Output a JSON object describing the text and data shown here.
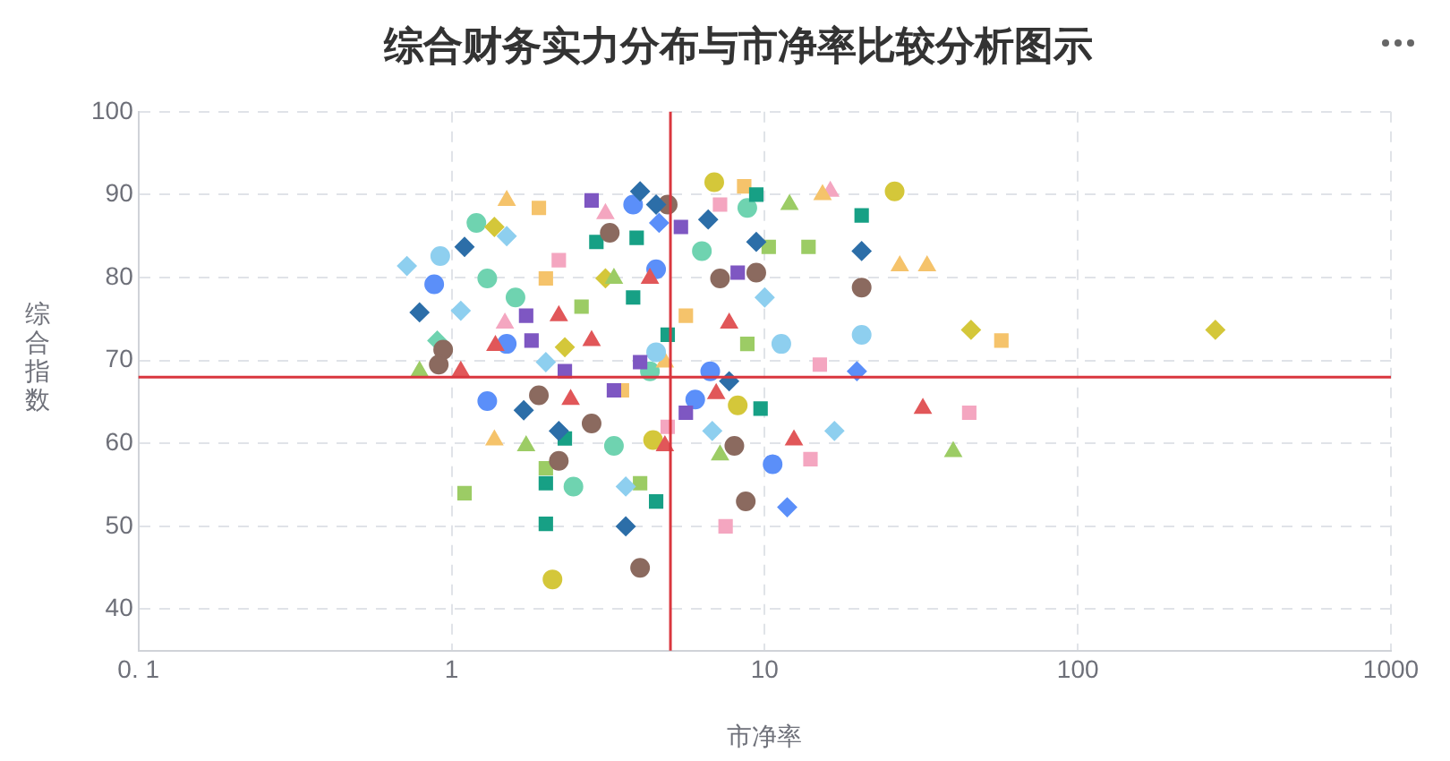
{
  "chart_data": {
    "type": "scatter",
    "title": "综合财务实力分布与市净率比较分析图示",
    "xlabel": "市净率",
    "ylabel": "综合指数",
    "log": "x",
    "xlim": [
      0.1,
      1000
    ],
    "xticks": [
      {
        "value": 0.1,
        "label": "0. 1"
      },
      1,
      10,
      100,
      1000
    ],
    "ylim": [
      35,
      100
    ],
    "yticks": [
      40,
      50,
      60,
      70,
      80,
      90,
      100
    ],
    "grid": true,
    "legend": false,
    "ref_lines": [
      {
        "axis": "x",
        "value": 5,
        "color": "#d9363e"
      },
      {
        "axis": "y",
        "value": 68,
        "color": "#d9363e"
      }
    ],
    "series": [
      {
        "color": "#2c6ea8",
        "marker": "diamond",
        "x": [
          1.1,
          0.79,
          1.7,
          3.6,
          4.5,
          6.6,
          20.4,
          7.7,
          2.2,
          9.4,
          4
        ],
        "values": [
          83.7,
          75.8,
          64,
          50,
          88.8,
          87,
          83.2,
          67.5,
          61.5,
          84.3,
          90.4
        ]
      },
      {
        "color": "#8b6a5f",
        "marker": "circle",
        "x": [
          0.94,
          0.91,
          1.9,
          4,
          8.7,
          8,
          20.4,
          9.4,
          2.2,
          4.9,
          3.2,
          2.8,
          7.2
        ],
        "values": [
          71.3,
          69.5,
          65.8,
          45,
          53,
          59.7,
          78.8,
          80.6,
          57.9,
          88.8,
          85.4,
          62.4,
          79.9
        ]
      },
      {
        "color": "#17a085",
        "marker": "square",
        "x": [
          9.4,
          20.4,
          2,
          2,
          4.5,
          2.9,
          4.9,
          2.3,
          9.7,
          3.8,
          3.9
        ],
        "values": [
          90,
          87.5,
          50.3,
          55.2,
          53,
          84.3,
          73.1,
          60.6,
          64.2,
          77.6,
          84.8
        ]
      },
      {
        "color": "#e15759",
        "marker": "triangle",
        "x": [
          1.38,
          1.07,
          12.4,
          32,
          7,
          2.8,
          4.8,
          7.7,
          4.3,
          2.2,
          2.4
        ],
        "values": [
          71.8,
          68.7,
          60.4,
          64.2,
          66,
          72.4,
          59.7,
          74.5,
          79.9,
          75.4,
          65.3
        ]
      },
      {
        "color": "#7e57c2",
        "marker": "square",
        "x": [
          1.73,
          2.8,
          5.4,
          5.6,
          1.8,
          3.3,
          8.2,
          2.3,
          4
        ],
        "values": [
          75.4,
          89.3,
          86.1,
          63.7,
          72.4,
          66.4,
          80.6,
          68.7,
          69.8
        ]
      },
      {
        "color": "#5b8ff9",
        "marker": "circle",
        "x": [
          0.88,
          1.3,
          3.8,
          1.5,
          6,
          10.6,
          4.5,
          6.7
        ],
        "values": [
          79.2,
          65.1,
          88.8,
          72,
          65.3,
          57.5,
          81,
          68.7
        ]
      },
      {
        "color": "#5b8ff9",
        "marker": "diamond",
        "x": [
          11.8,
          19.7,
          4.6
        ],
        "values": [
          52.3,
          68.7,
          86.6
        ]
      },
      {
        "color": "#8ecfef",
        "marker": "diamond",
        "x": [
          0.72,
          1.5,
          10,
          16.7,
          3.6,
          2,
          6.8,
          1.07
        ],
        "values": [
          81.4,
          85,
          77.6,
          61.5,
          54.8,
          69.8,
          61.5,
          76
        ]
      },
      {
        "color": "#8ecfef",
        "marker": "circle",
        "x": [
          0.92,
          20.4,
          11.3,
          4.5
        ],
        "values": [
          82.6,
          73.1,
          72,
          71
        ]
      },
      {
        "color": "#9ccc65",
        "marker": "square",
        "x": [
          1.1,
          2,
          8.8,
          10.3,
          13.8,
          2.6,
          4
        ],
        "values": [
          54,
          57,
          72,
          83.7,
          83.7,
          76.5,
          55.2
        ]
      },
      {
        "color": "#9ccc65",
        "marker": "triangle",
        "x": [
          0.79,
          40,
          12,
          1.73,
          3.3,
          7.2
        ],
        "values": [
          68.7,
          59,
          88.8,
          59.7,
          79.9,
          58.6
        ]
      },
      {
        "color": "#d4c73a",
        "marker": "circle",
        "x": [
          26,
          2.1,
          6.9,
          8.2,
          4.4
        ],
        "values": [
          90.4,
          43.6,
          91.5,
          64.6,
          60.4
        ]
      },
      {
        "color": "#d4c73a",
        "marker": "diamond",
        "x": [
          45.6,
          275,
          1.37,
          3.1,
          2.3
        ],
        "values": [
          73.7,
          73.7,
          86.1,
          79.9,
          71.6
        ]
      },
      {
        "color": "#f5c36b",
        "marker": "square",
        "x": [
          57,
          1.9,
          8.6,
          2,
          3.5,
          5.6
        ],
        "values": [
          72.4,
          88.4,
          91,
          79.9,
          66.4,
          75.4
        ]
      },
      {
        "color": "#f5c36b",
        "marker": "triangle",
        "x": [
          27,
          33,
          15.3,
          1.5,
          1.37,
          4.8
        ],
        "values": [
          81.4,
          81.4,
          90,
          89.3,
          60.4,
          69.8
        ]
      },
      {
        "color": "#f4a6c0",
        "marker": "square",
        "x": [
          45,
          7.5,
          14,
          15,
          7.2,
          2.2,
          4.9
        ],
        "values": [
          63.7,
          50,
          58.1,
          69.5,
          88.8,
          82.1,
          62
        ]
      },
      {
        "color": "#f4a6c0",
        "marker": "triangle",
        "x": [
          16.2,
          1.48,
          3.1
        ],
        "values": [
          90.4,
          74.5,
          87.7
        ]
      },
      {
        "color": "#6fd3b0",
        "marker": "circle",
        "x": [
          1.3,
          1.2,
          1.6,
          2.45,
          8.8,
          4.3,
          6.3,
          3.3
        ],
        "values": [
          79.9,
          86.6,
          77.6,
          54.8,
          88.4,
          68.7,
          83.2,
          59.7
        ]
      },
      {
        "color": "#6fd3b0",
        "marker": "diamond",
        "x": [
          0.9
        ],
        "values": [
          72.4
        ]
      }
    ]
  }
}
